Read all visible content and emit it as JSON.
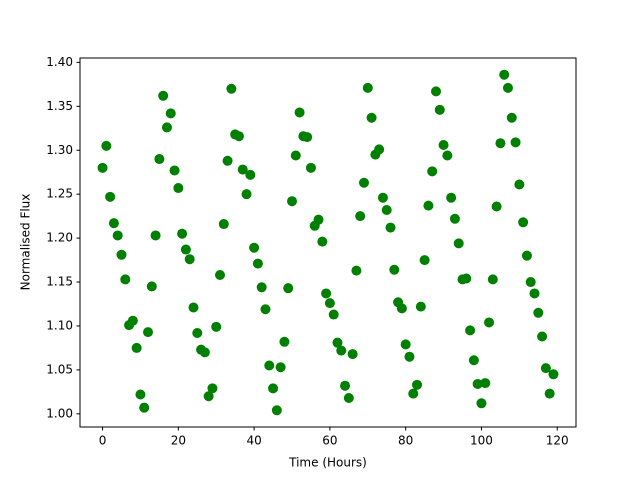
{
  "chart_data": {
    "type": "scatter",
    "xlabel": "Time (Hours)",
    "ylabel": "Normalised Flux",
    "color": "#008000",
    "x": [
      0,
      1,
      2,
      3,
      4,
      5,
      6,
      7,
      8,
      9,
      10,
      11,
      12,
      13,
      14,
      15,
      16,
      17,
      18,
      19,
      20,
      21,
      22,
      23,
      24,
      25,
      26,
      27,
      28,
      29,
      30,
      31,
      32,
      33,
      34,
      35,
      36,
      37,
      38,
      39,
      40,
      41,
      42,
      43,
      44,
      45,
      46,
      47,
      48,
      49,
      50,
      51,
      52,
      53,
      54,
      55,
      56,
      57,
      58,
      59,
      60,
      61,
      62,
      63,
      64,
      65,
      66,
      67,
      68,
      69,
      70,
      71,
      72,
      73,
      74,
      75,
      76,
      77,
      78,
      79,
      80,
      81,
      82,
      83,
      84,
      85,
      86,
      87,
      88,
      89,
      90,
      91,
      92,
      93,
      94,
      95,
      96,
      97,
      98,
      99,
      100,
      101,
      102,
      103,
      104,
      105,
      106,
      107,
      108,
      109,
      110,
      111,
      112,
      113,
      114,
      115,
      116,
      117,
      118,
      119
    ],
    "values": [
      1.28,
      1.305,
      1.247,
      1.217,
      1.203,
      1.181,
      1.153,
      1.101,
      1.106,
      1.075,
      1.022,
      1.007,
      1.093,
      1.145,
      1.203,
      1.29,
      1.362,
      1.326,
      1.342,
      1.277,
      1.257,
      1.205,
      1.187,
      1.176,
      1.121,
      1.092,
      1.073,
      1.07,
      1.02,
      1.029,
      1.099,
      1.158,
      1.216,
      1.288,
      1.37,
      1.318,
      1.316,
      1.278,
      1.25,
      1.272,
      1.189,
      1.171,
      1.144,
      1.119,
      1.055,
      1.029,
      1.004,
      1.053,
      1.082,
      1.143,
      1.242,
      1.294,
      1.343,
      1.316,
      1.315,
      1.28,
      1.214,
      1.221,
      1.196,
      1.137,
      1.126,
      1.113,
      1.081,
      1.072,
      1.032,
      1.018,
      1.068,
      1.163,
      1.225,
      1.263,
      1.371,
      1.337,
      1.295,
      1.301,
      1.246,
      1.232,
      1.212,
      1.164,
      1.127,
      1.12,
      1.079,
      1.065,
      1.023,
      1.033,
      1.122,
      1.175,
      1.237,
      1.276,
      1.367,
      1.346,
      1.306,
      1.294,
      1.246,
      1.222,
      1.194,
      1.153,
      1.154,
      1.095,
      1.061,
      1.034,
      1.012,
      1.035,
      1.104,
      1.153,
      1.236,
      1.308,
      1.386,
      1.371,
      1.337,
      1.309,
      1.261,
      1.218,
      1.18,
      1.15,
      1.137,
      1.115,
      1.088,
      1.052,
      1.023,
      1.045
    ],
    "xlim": [
      -5.95,
      124.95
    ],
    "xticks": [
      0,
      20,
      40,
      60,
      80,
      100,
      120
    ],
    "ylim": [
      0.985,
      1.405
    ],
    "yticks": [
      {
        "value": 1.0,
        "label": "1.00"
      },
      1.05,
      {
        "value": 1.1,
        "label": "1.10"
      },
      1.15,
      {
        "value": 1.2,
        "label": "1.20"
      },
      1.25,
      {
        "value": 1.3,
        "label": "1.30"
      },
      1.35,
      {
        "value": 1.4,
        "label": "1.40"
      }
    ]
  }
}
